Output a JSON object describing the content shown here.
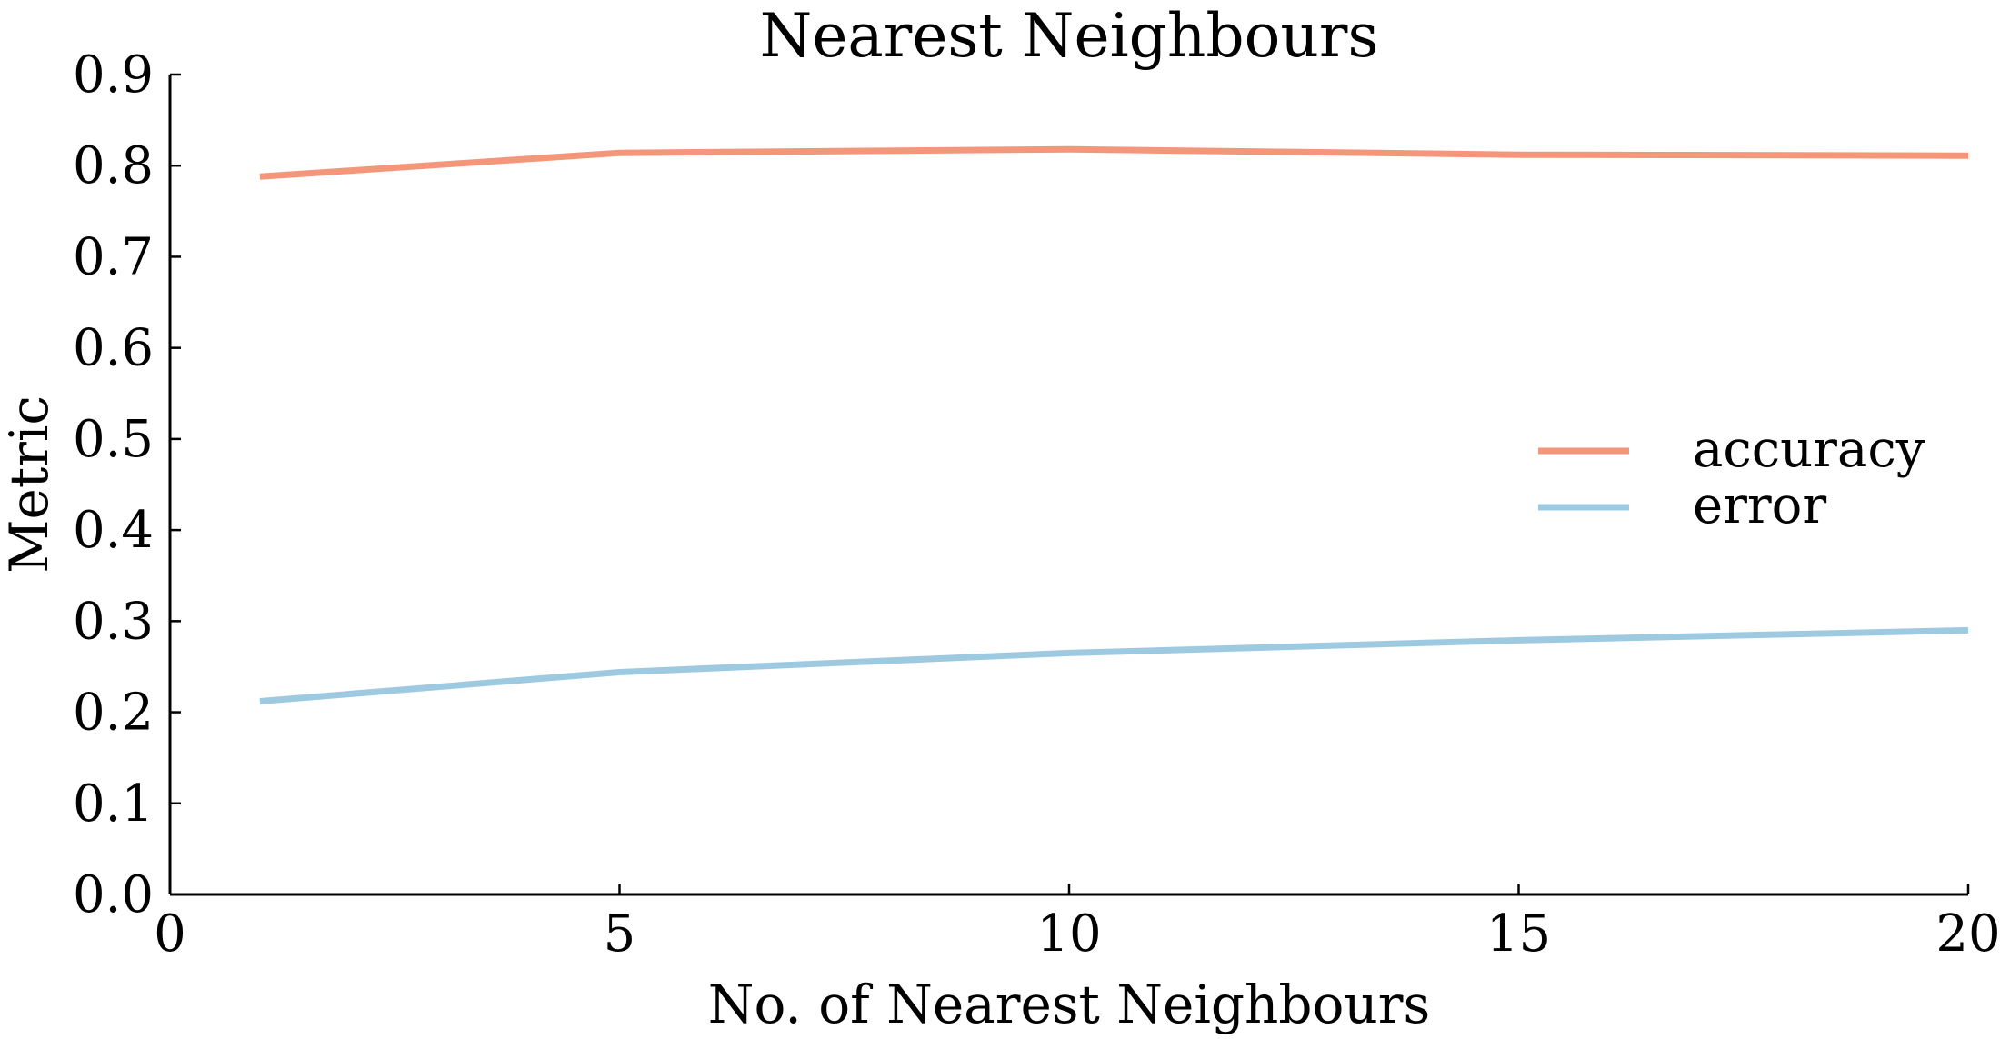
{
  "chart_data": {
    "type": "line",
    "title": "Nearest Neighbours",
    "xlabel": "No. of Nearest Neighbours",
    "ylabel": "Metric",
    "xlim": [
      0,
      20
    ],
    "ylim": [
      0.0,
      0.9
    ],
    "xticks": [
      0,
      5,
      10,
      15,
      20
    ],
    "xtick_labels": [
      "0",
      "5",
      "10",
      "15",
      "20"
    ],
    "yticks": [
      0.0,
      0.1,
      0.2,
      0.3,
      0.4,
      0.5,
      0.6,
      0.7,
      0.8,
      0.9
    ],
    "ytick_labels": [
      "0.0",
      "0.1",
      "0.2",
      "0.3",
      "0.4",
      "0.5",
      "0.6",
      "0.7",
      "0.8",
      "0.9"
    ],
    "grid": false,
    "legend_position": "center-right",
    "x": [
      1,
      5,
      10,
      15,
      20
    ],
    "series": [
      {
        "name": "accuracy",
        "color": "#f4967a",
        "values": [
          0.788,
          0.814,
          0.818,
          0.812,
          0.811
        ]
      },
      {
        "name": "error",
        "color": "#9ecae1",
        "values": [
          0.212,
          0.244,
          0.265,
          0.279,
          0.29
        ]
      }
    ]
  }
}
